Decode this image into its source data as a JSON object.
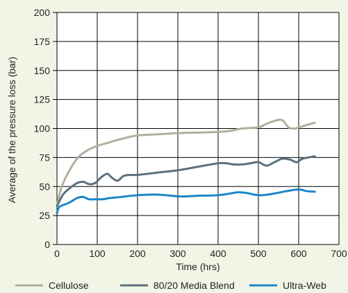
{
  "chart_data": {
    "type": "line",
    "title": "",
    "xlabel": "Time (hrs)",
    "ylabel": "Average of the pressure loss (bar)",
    "xlim": [
      0,
      700
    ],
    "ylim": [
      0,
      200
    ],
    "xticks": [
      "0",
      "100",
      "200",
      "300",
      "400",
      "500",
      "600",
      "700"
    ],
    "yticks": [
      "0",
      "25",
      "50",
      "75",
      "100",
      "125",
      "150",
      "175",
      "200"
    ],
    "grid": true,
    "legend_position": "bottom",
    "series": [
      {
        "name": "Cellulose",
        "color": "#b3ad9d",
        "x": [
          0,
          10,
          25,
          50,
          75,
          100,
          130,
          160,
          200,
          250,
          300,
          350,
          400,
          430,
          460,
          500,
          520,
          545,
          560,
          575,
          590,
          610,
          640
        ],
        "y": [
          33,
          48,
          60,
          74,
          81,
          85,
          88,
          91,
          94,
          95,
          96,
          96.5,
          97,
          98,
          100,
          101,
          104,
          107,
          107,
          101,
          100,
          102,
          105
        ]
      },
      {
        "name": "80/20 Media Blend",
        "color": "#5a6f7d",
        "x": [
          0,
          15,
          30,
          50,
          65,
          80,
          95,
          110,
          125,
          135,
          150,
          165,
          180,
          200,
          250,
          300,
          350,
          400,
          420,
          440,
          460,
          480,
          500,
          520,
          540,
          560,
          580,
          595,
          610,
          640
        ],
        "y": [
          33,
          43,
          48,
          53,
          54,
          52,
          53,
          58,
          61,
          58,
          55,
          59,
          60,
          60,
          62,
          64,
          67,
          70,
          70,
          69,
          69,
          70,
          71,
          68,
          71,
          74,
          73,
          71,
          74,
          76
        ]
      },
      {
        "name": "Ultra-Web",
        "color": "#1a86c8",
        "x": [
          0,
          5,
          15,
          30,
          50,
          65,
          80,
          100,
          115,
          130,
          160,
          200,
          250,
          300,
          320,
          350,
          400,
          430,
          450,
          470,
          490,
          510,
          540,
          570,
          600,
          620,
          640
        ],
        "y": [
          27,
          32,
          34,
          36,
          40,
          41,
          39,
          39,
          39,
          40,
          41,
          42.5,
          43,
          41.5,
          41.5,
          42,
          42.5,
          44,
          45,
          44.5,
          43,
          42.5,
          44,
          46,
          47.5,
          46,
          45.5
        ]
      }
    ]
  }
}
